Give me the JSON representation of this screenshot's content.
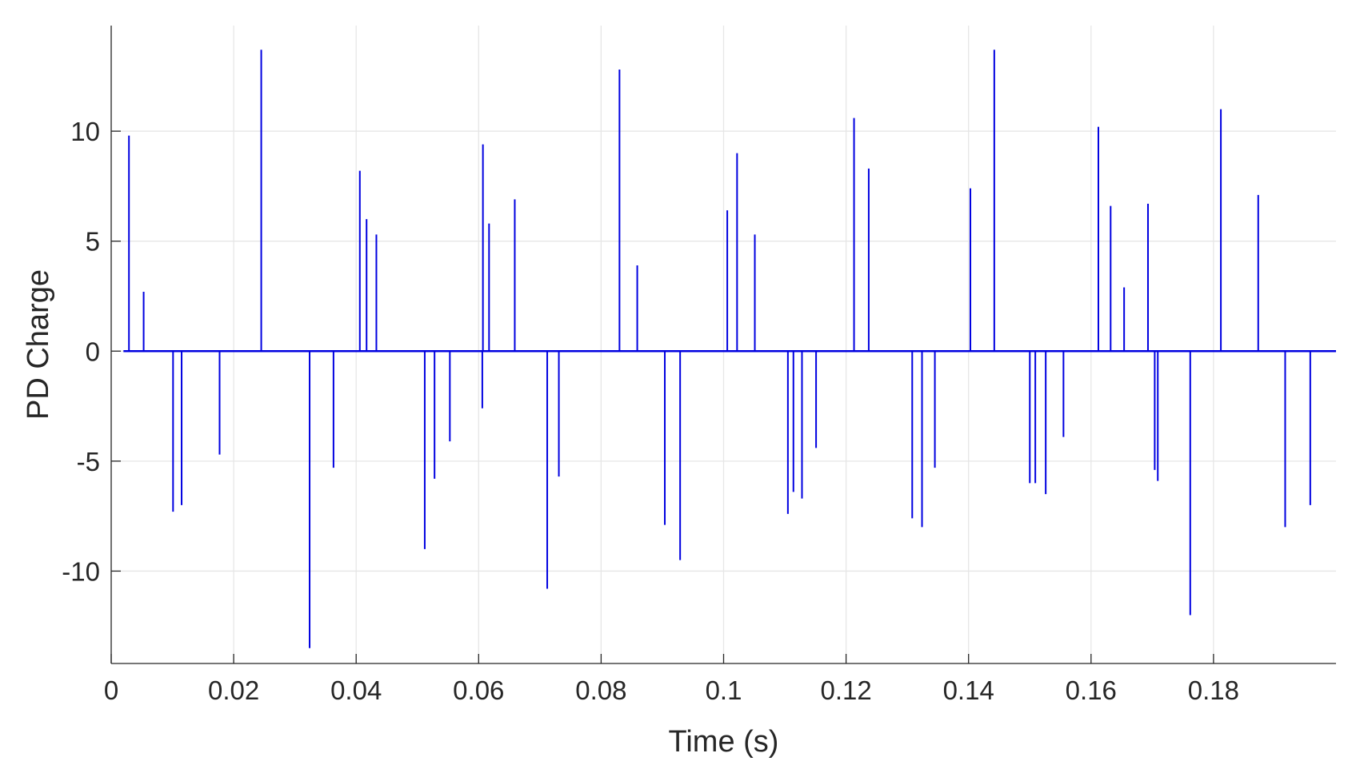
{
  "chart_data": {
    "type": "line",
    "title": "",
    "xlabel": "Time (s)",
    "ylabel": "PD Charge",
    "xlim": [
      0,
      0.2
    ],
    "ylim": [
      -14.2,
      14.8
    ],
    "xticks": [
      0,
      0.02,
      0.04,
      0.06,
      0.08,
      0.1,
      0.12,
      0.14,
      0.16,
      0.18
    ],
    "xtick_labels": [
      "0",
      "0.02",
      "0.04",
      "0.06",
      "0.08",
      "0.1",
      "0.12",
      "0.14",
      "0.16",
      "0.18"
    ],
    "yticks": [
      -10,
      -5,
      0,
      5,
      10
    ],
    "ytick_labels": [
      "-10",
      "-5",
      "0",
      "5",
      "10"
    ],
    "grid": true,
    "line_color": "#0000e0",
    "series": [
      {
        "x": [
          0.0029,
          0.0053,
          0.0101,
          0.0115,
          0.0177,
          0.0245,
          0.0324,
          0.0363,
          0.0406,
          0.0417,
          0.0433,
          0.0512,
          0.0528,
          0.0553,
          0.0606,
          0.0607,
          0.0617,
          0.0659,
          0.0712,
          0.0731,
          0.083,
          0.0859,
          0.0904,
          0.0929,
          0.1006,
          0.1022,
          0.1051,
          0.1105,
          0.1114,
          0.1128,
          0.1151,
          0.1213,
          0.1237,
          0.1308,
          0.1324,
          0.1345,
          0.1403,
          0.1442,
          0.15,
          0.1509,
          0.1526,
          0.1555,
          0.1612,
          0.1632,
          0.1654,
          0.1693,
          0.1704,
          0.1709,
          0.1762,
          0.1812,
          0.1873,
          0.1917,
          0.1958
        ],
        "y": [
          9.8,
          2.7,
          -7.3,
          -7.0,
          -4.7,
          13.7,
          -13.5,
          -5.3,
          8.2,
          6.0,
          5.3,
          -9.0,
          -5.8,
          -4.1,
          -2.6,
          9.4,
          5.8,
          6.9,
          -10.8,
          -5.7,
          12.8,
          3.9,
          -7.9,
          -9.5,
          6.4,
          9.0,
          5.3,
          -7.4,
          -6.4,
          -6.7,
          -4.4,
          10.6,
          8.3,
          -7.6,
          -8.0,
          -5.3,
          7.4,
          13.7,
          -6.0,
          -6.0,
          -6.5,
          -3.9,
          10.2,
          6.6,
          2.9,
          6.7,
          -5.4,
          -5.9,
          -12.0,
          11.0,
          7.1,
          -8.0,
          -7.0
        ]
      }
    ]
  }
}
